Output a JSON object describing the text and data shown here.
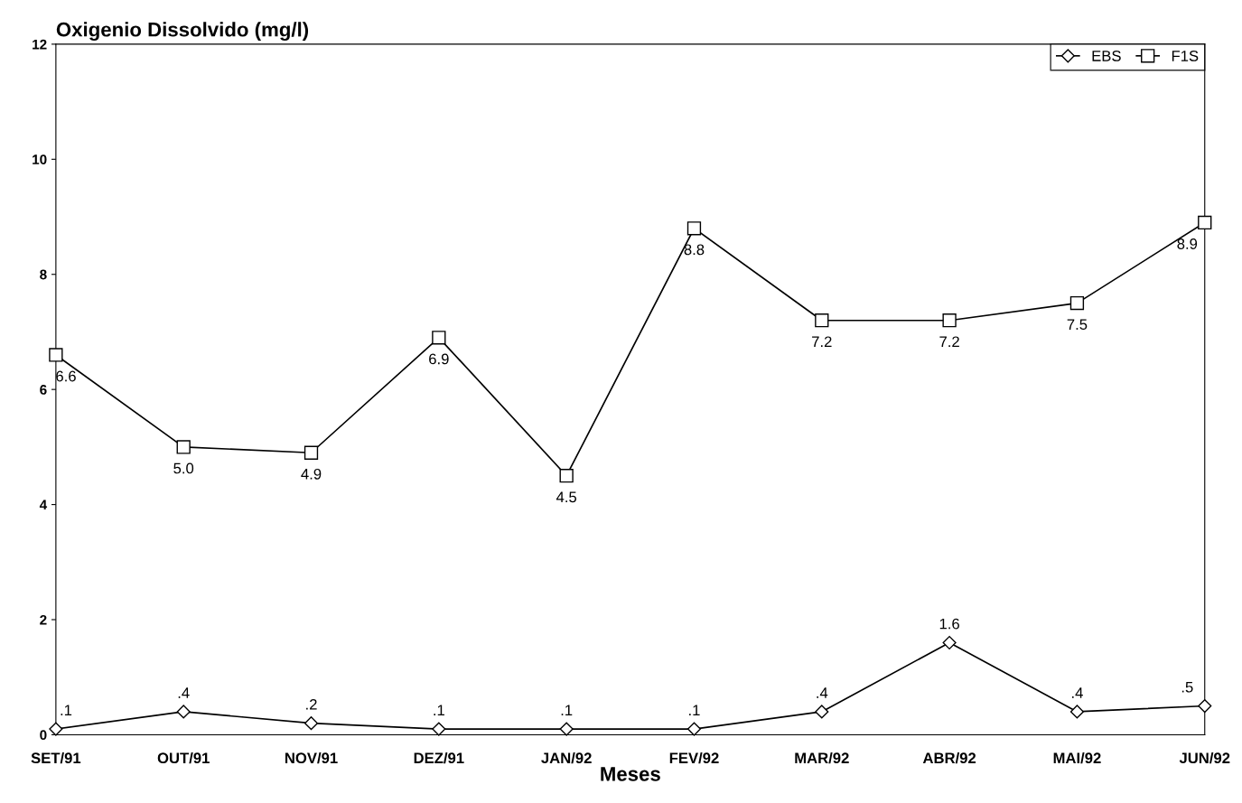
{
  "chart_data": {
    "type": "line",
    "title": "Oxigenio Dissolvido (mg/l)",
    "xlabel": "Meses",
    "categories": [
      "SET/91",
      "OUT/91",
      "NOV/91",
      "DEZ/91",
      "JAN/92",
      "FEV/92",
      "MAR/92",
      "ABR/92",
      "MAI/92",
      "JUN/92"
    ],
    "series": [
      {
        "name": "EBS",
        "color": "#000000",
        "marker": "diamond",
        "values": [
          0.1,
          0.4,
          0.2,
          0.1,
          0.1,
          0.1,
          0.4,
          1.6,
          0.4,
          0.5
        ],
        "value_labels": [
          ".1",
          ".4",
          ".2",
          ".1",
          ".1",
          ".1",
          ".4",
          "1.6",
          ".4",
          ".5"
        ]
      },
      {
        "name": "F1S",
        "color": "#000000",
        "marker": "square",
        "values": [
          6.6,
          5.0,
          4.9,
          6.9,
          4.5,
          8.8,
          7.2,
          7.2,
          7.5,
          8.9
        ],
        "value_labels": [
          "6.6",
          "5.0",
          "4.9",
          "6.9",
          "4.5",
          "8.8",
          "7.2",
          "7.2",
          "7.5",
          "8.9"
        ]
      }
    ],
    "ylim": [
      0,
      12
    ],
    "yticks": [
      0,
      2,
      4,
      6,
      8,
      10,
      12
    ],
    "legend": "top right",
    "grid": false,
    "line_style": "solid"
  }
}
